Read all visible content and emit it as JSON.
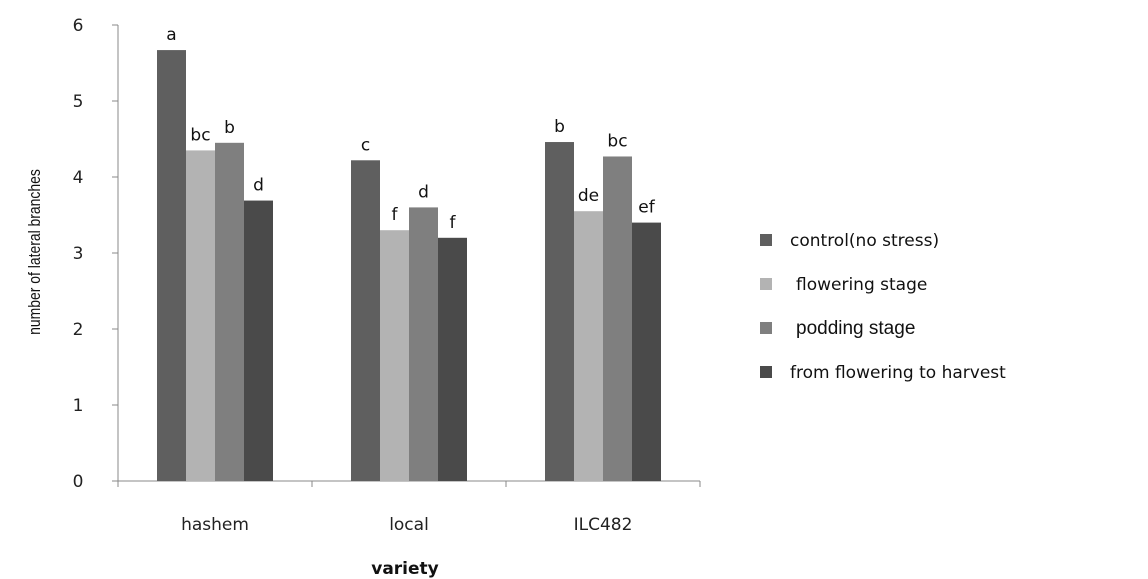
{
  "chart_data": {
    "type": "bar",
    "xlabel": "variety",
    "ylabel": "number of lateral branches",
    "ylim": [
      0,
      6
    ],
    "yticks": [
      "0",
      "1",
      "2",
      "3",
      "4",
      "5",
      "6"
    ],
    "categories": [
      "hashem",
      "local",
      "ILC482"
    ],
    "grid": false,
    "legend_position": "right",
    "series": [
      {
        "name": "control(no stress)",
        "color": "#5f5f5f",
        "values": [
          5.67,
          4.22,
          4.46
        ],
        "labels": [
          "a",
          "c",
          "b"
        ]
      },
      {
        "name": "flowering stage",
        "color": "#b3b3b3",
        "values": [
          4.35,
          3.3,
          3.55
        ],
        "labels": [
          "bc",
          "f",
          "de"
        ]
      },
      {
        "name": "podding stage",
        "color": "#7f7f7f",
        "values": [
          4.45,
          3.6,
          4.27
        ],
        "labels": [
          "b",
          "d",
          "bc"
        ]
      },
      {
        "name": "from flowering to harvest",
        "color": "#4a4a4a",
        "values": [
          3.69,
          3.2,
          3.4
        ],
        "labels": [
          "d",
          "f",
          "ef"
        ]
      }
    ]
  }
}
